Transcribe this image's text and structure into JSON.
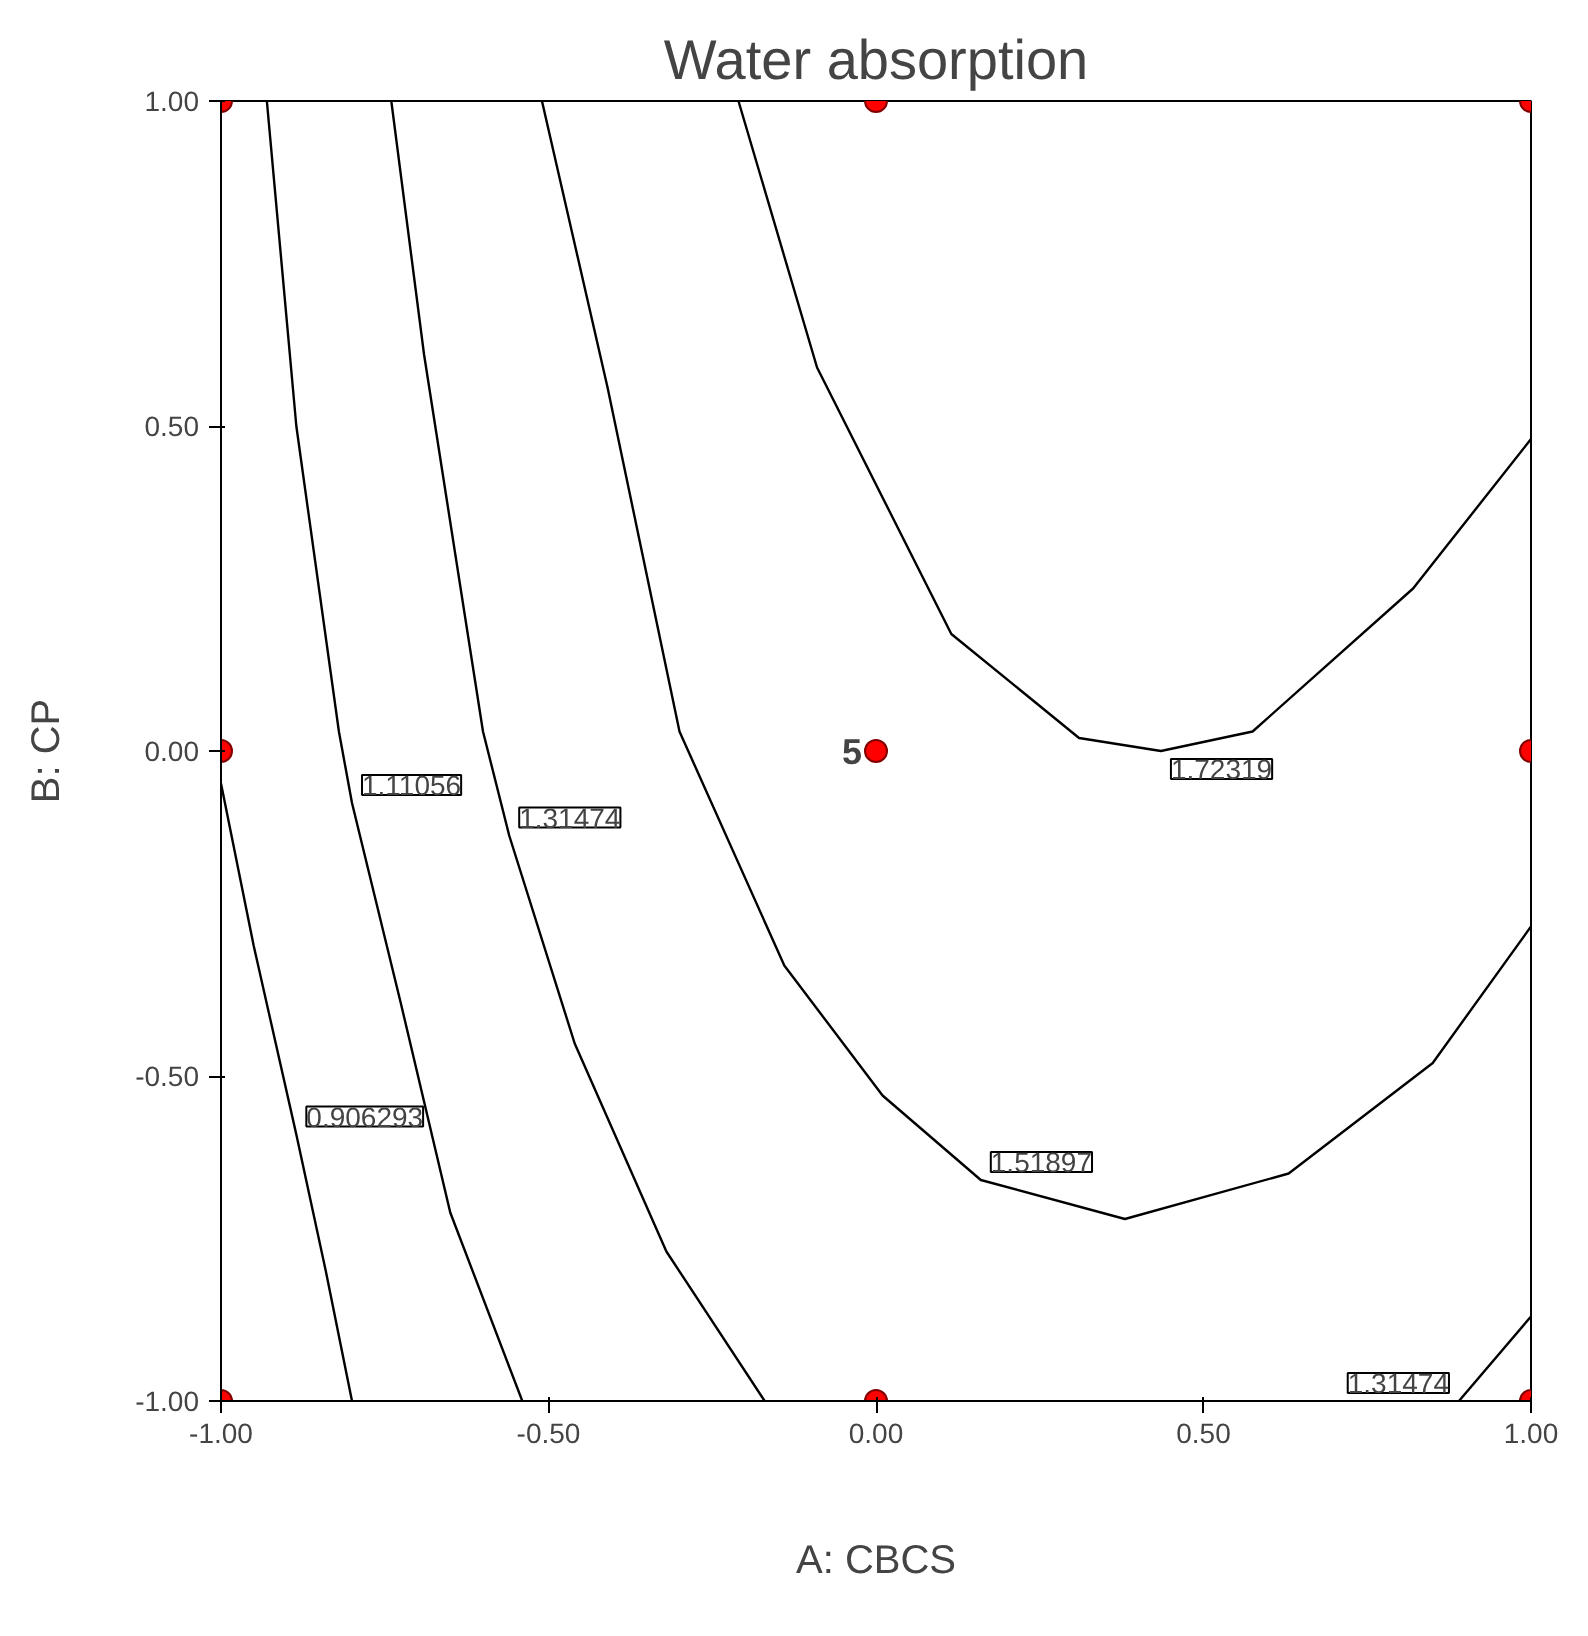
{
  "chart_data": {
    "type": "line",
    "title": "Water absorption",
    "xlabel": "A: CBCS",
    "ylabel": "B: CP",
    "xlim": [
      -1,
      1
    ],
    "ylim": [
      -1,
      1
    ],
    "xticks": [
      {
        "value": -1,
        "label": "-1.00"
      },
      {
        "value": -0.5,
        "label": "-0.50"
      },
      {
        "value": 0,
        "label": "0.00"
      },
      {
        "value": 0.5,
        "label": "0.50"
      },
      {
        "value": 1,
        "label": "1.00"
      }
    ],
    "yticks": [
      {
        "value": -1,
        "label": "-1.00"
      },
      {
        "value": -0.5,
        "label": "-0.50"
      },
      {
        "value": 0,
        "label": "0.00"
      },
      {
        "value": 0.5,
        "label": "0.50"
      },
      {
        "value": 1,
        "label": "1.00"
      }
    ],
    "grid": false,
    "line_style": "solid",
    "marker": "none",
    "series": [
      {
        "name": "0.906293",
        "color": "#000000",
        "x": [
          -1,
          -0.95,
          -0.885,
          -0.84,
          -0.8
        ],
        "values": [
          -0.05,
          -0.3,
          -0.59,
          -0.8,
          -1
        ]
      },
      {
        "name": "1.11056",
        "color": "#000000",
        "x": [
          -0.93,
          -0.885,
          -0.82,
          -0.8,
          -0.725,
          -0.65,
          -0.54
        ],
        "values": [
          1,
          0.5,
          0.03,
          -0.08,
          -0.39,
          -0.71,
          -1
        ]
      },
      {
        "name": "1.31474",
        "color": "#000000",
        "x": [
          -0.74,
          -0.69,
          -0.6,
          -0.56,
          -0.46,
          -0.32,
          -0.17
        ],
        "values": [
          1,
          0.61,
          0.03,
          -0.13,
          -0.45,
          -0.77,
          -1
        ]
      },
      {
        "name": "1.31474",
        "color": "#000000",
        "x": [
          1.0,
          0.89
        ],
        "values": [
          -0.87,
          -1
        ]
      },
      {
        "name": "1.51897",
        "color": "#000000",
        "x": [
          -0.51,
          -0.41,
          -0.3,
          -0.14,
          0.01,
          0.16,
          0.38,
          0.63,
          0.85,
          1.0
        ],
        "values": [
          1,
          0.56,
          0.03,
          -0.33,
          -0.53,
          -0.66,
          -0.72,
          -0.65,
          -0.48,
          -0.27
        ]
      },
      {
        "name": "1.72319",
        "color": "#000000",
        "x": [
          -0.21,
          -0.09,
          0.115,
          0.31,
          0.435,
          0.575,
          0.82,
          1.0
        ],
        "values": [
          1,
          0.59,
          0.18,
          0.02,
          0.0,
          0.03,
          0.25,
          0.48
        ]
      },
      {
        "type": "scatter",
        "marker": "circle",
        "color": "#ff0000",
        "x": [
          -1,
          0,
          1,
          -1,
          0,
          1,
          -1,
          0,
          1
        ],
        "values": [
          1,
          1,
          1,
          0,
          0,
          0,
          -1,
          -1,
          -1
        ]
      }
    ],
    "annotations": [
      {
        "text": "5",
        "x": 0,
        "y": 0
      }
    ]
  }
}
